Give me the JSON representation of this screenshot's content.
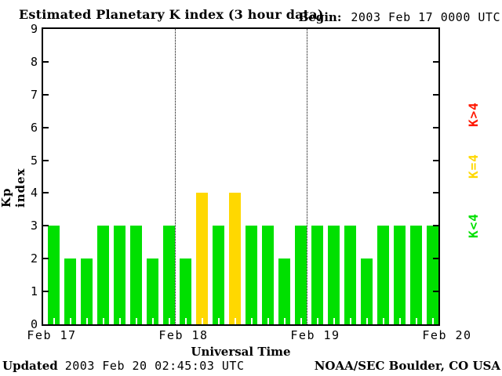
{
  "title": "Estimated Planetary K index (3 hour data)",
  "begin": {
    "label": "Begin:",
    "value": "2003 Feb 17 0000 UTC"
  },
  "footer": {
    "updated_label": "Updated",
    "updated_value": "2003 Feb 20 02:45:03 UTC",
    "credit": "NOAA/SEC Boulder, CO USA"
  },
  "chart_data": {
    "type": "bar",
    "title": "Estimated Planetary K index (3 hour data)",
    "xlabel": "Universal Time",
    "ylabel": "Kp index",
    "ylim": [
      0,
      9
    ],
    "yticks": [
      0,
      1,
      2,
      3,
      4,
      5,
      6,
      7,
      8,
      9
    ],
    "hours_per_bar": 3,
    "x_day_labels": [
      "Feb 17",
      "Feb 18",
      "Feb 19",
      "Feb 20"
    ],
    "grid": "dotted vertical lines at day boundaries",
    "values": [
      3,
      2,
      2,
      3,
      3,
      3,
      2,
      3,
      2,
      4,
      3,
      4,
      3,
      3,
      2,
      3,
      3,
      3,
      3,
      2,
      3,
      3,
      3,
      3
    ],
    "colors": {
      "below4": "#00e000",
      "equal4": "#ffd800",
      "above4": "#ff1800"
    },
    "legend": [
      {
        "label": "K>4",
        "color": "#ff1800"
      },
      {
        "label": "K=4",
        "color": "#ffd800"
      },
      {
        "label": "K<4",
        "color": "#00e000"
      }
    ],
    "legend_position": "right, rotated 90deg, top-to-bottom: K>4, K=4, K<4"
  }
}
